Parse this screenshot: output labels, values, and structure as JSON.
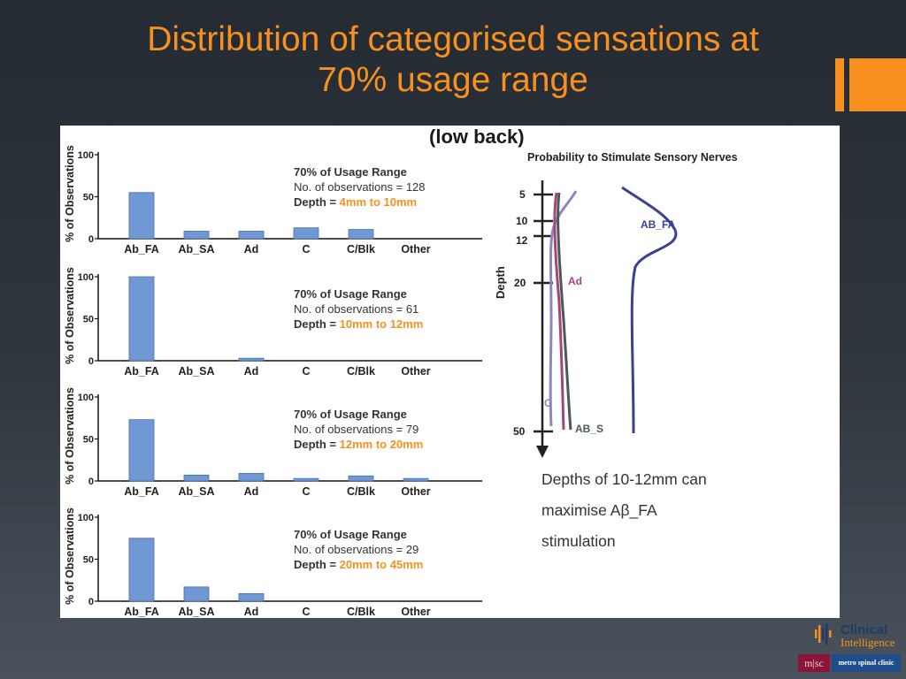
{
  "slide": {
    "title_line1": "Distribution of categorised sensations at",
    "title_line2": "70% usage range",
    "subtitle": "(low back)",
    "colors": {
      "title": "#f7901e",
      "bar": "#6f98d4",
      "highlight": "#f7901e"
    }
  },
  "chart_data": [
    {
      "type": "bar",
      "categories": [
        "Ab_FA",
        "Ab_SA",
        "Ad",
        "C",
        "C/Blk",
        "Other"
      ],
      "values": [
        55,
        9,
        9,
        13,
        11,
        0
      ],
      "ylabel": "% of Observations",
      "yticks": [
        "0",
        "50",
        "100"
      ],
      "ylim": [
        0,
        100
      ],
      "legend_line1": "70% of Usage Range",
      "legend_line2": "No. of observations = 128",
      "depth_label": "Depth = ",
      "depth_value": "4mm to 10mm"
    },
    {
      "type": "bar",
      "categories": [
        "Ab_FA",
        "Ab_SA",
        "Ad",
        "C",
        "C/Blk",
        "Other"
      ],
      "values": [
        100,
        0,
        3,
        0,
        0,
        0
      ],
      "ylabel": "% of Observations",
      "yticks": [
        "0",
        "50",
        "100"
      ],
      "ylim": [
        0,
        100
      ],
      "legend_line1": "70% of Usage Range",
      "legend_line2": "No. of observations = 61",
      "depth_label": "Depth = ",
      "depth_value": "10mm to 12mm"
    },
    {
      "type": "bar",
      "categories": [
        "Ab_FA",
        "Ab_SA",
        "Ad",
        "C",
        "C/Blk",
        "Other"
      ],
      "values": [
        73,
        7,
        9,
        3,
        6,
        3
      ],
      "ylabel": "% of Observations",
      "yticks": [
        "0",
        "50",
        "100"
      ],
      "ylim": [
        0,
        100
      ],
      "legend_line1": "70% of Usage Range",
      "legend_line2": "No. of observations = 79",
      "depth_label": "Depth = ",
      "depth_value": "12mm to 20mm"
    },
    {
      "type": "bar",
      "categories": [
        "Ab_FA",
        "Ab_SA",
        "Ad",
        "C",
        "C/Blk",
        "Other"
      ],
      "values": [
        75,
        17,
        9,
        0,
        0,
        0
      ],
      "ylabel": "% of Observations",
      "yticks": [
        "0",
        "50",
        "100"
      ],
      "ylim": [
        0,
        100
      ],
      "legend_line1": "70% of Usage Range",
      "legend_line2": "No. of observations = 29",
      "depth_label": "Depth = ",
      "depth_value": "20mm to 45mm"
    }
  ],
  "nerve_plot": {
    "title": "Probability to Stimulate Sensory Nerves",
    "ylabel": "Depth",
    "ticks": [
      "5",
      "10",
      "12",
      "20",
      "50"
    ],
    "labels": {
      "ab_fa": "AB_FA",
      "ad": "Ad",
      "c": "C",
      "ab_s": "AB_S"
    },
    "colors": {
      "ab_fa": "#3a3f98",
      "ad": "#a8447c",
      "c": "#8c86c4",
      "ab_s": "#4a5a58",
      "axis": "#222222"
    }
  },
  "note": {
    "line1": "Depths of 10-12mm can",
    "line2": "maximise Aβ_FA",
    "line3": "stimulation"
  },
  "logos": {
    "clinical": "Clinical",
    "intelligence": "Intelligence",
    "msc": "m|sc",
    "metro": "metro spinal clinic"
  }
}
